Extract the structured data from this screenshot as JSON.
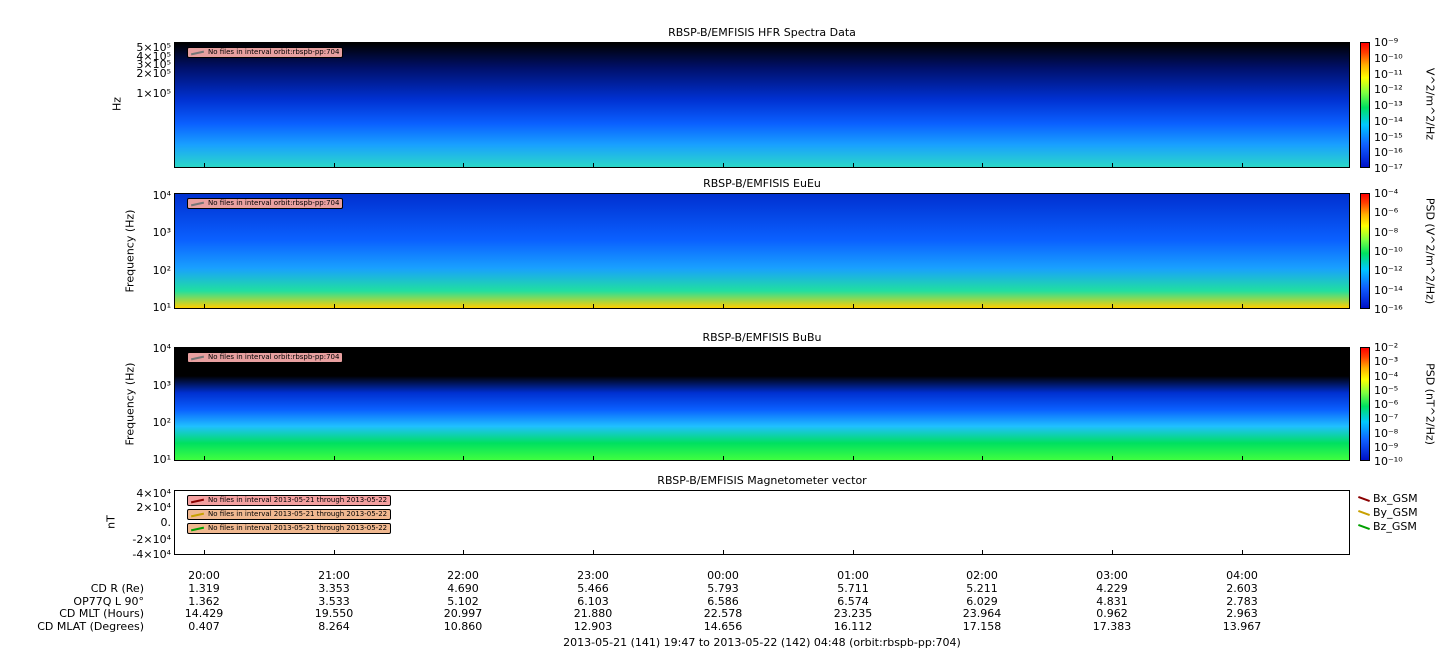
{
  "panels": [
    {
      "title": "RBSP-B/EMFISIS  HFR Spectra Data",
      "ylabel": "Hz",
      "yticks": [
        "5×10⁵",
        "4×10⁵",
        "3×10⁵",
        "2×10⁵",
        "1×10⁵"
      ],
      "cbar_label": "V^2/m^2/Hz",
      "cbar_ticks": [
        "10⁻⁹",
        "10⁻¹⁰",
        "10⁻¹¹",
        "10⁻¹²",
        "10⁻¹³",
        "10⁻¹⁴",
        "10⁻¹⁵",
        "10⁻¹⁶",
        "10⁻¹⁷"
      ],
      "warning": "No files in interval orbit:rbspb-pp:704"
    },
    {
      "title": "RBSP-B/EMFISIS  EuEu",
      "ylabel": "Frequency (Hz)",
      "yticks": [
        "10⁴",
        "10³",
        "10²",
        "10¹"
      ],
      "cbar_label": "PSD (V^2/m^2/Hz)",
      "cbar_ticks": [
        "10⁻⁴",
        "10⁻⁶",
        "10⁻⁸",
        "10⁻¹⁰",
        "10⁻¹²",
        "10⁻¹⁴",
        "10⁻¹⁶"
      ],
      "warning": "No files in interval orbit:rbspb-pp:704"
    },
    {
      "title": "RBSP-B/EMFISIS  BuBu",
      "ylabel": "Frequency (Hz)",
      "yticks": [
        "10⁴",
        "10³",
        "10²",
        "10¹"
      ],
      "cbar_label": "PSD (nT^2/Hz)",
      "cbar_ticks": [
        "10⁻²",
        "10⁻³",
        "10⁻⁴",
        "10⁻⁵",
        "10⁻⁶",
        "10⁻⁷",
        "10⁻⁸",
        "10⁻⁹",
        "10⁻¹⁰"
      ],
      "warning": "No files in interval orbit:rbspb-pp:704"
    },
    {
      "title": "RBSP-B/EMFISIS  Magnetometer vector",
      "ylabel": "nT",
      "yticks": [
        "4×10⁴",
        "2×10⁴",
        "0.",
        "-2×10⁴",
        "-4×10⁴"
      ],
      "warnings": [
        "No files in interval 2013-05-21 through 2013-05-22",
        "No files in interval 2013-05-21 through 2013-05-22",
        "No files in interval 2013-05-21 through 2013-05-22"
      ],
      "legend": [
        {
          "name": "Bx_GSM",
          "color": "#8b0000"
        },
        {
          "name": "By_GSM",
          "color": "#c8a000"
        },
        {
          "name": "Bz_GSM",
          "color": "#00a000"
        }
      ]
    }
  ],
  "xticks": [
    "20:00",
    "21:00",
    "22:00",
    "23:00",
    "00:00",
    "01:00",
    "02:00",
    "03:00",
    "04:00"
  ],
  "ephemeris": [
    {
      "label": "CD R (Re)",
      "values": [
        "1.319",
        "3.353",
        "4.690",
        "5.466",
        "5.793",
        "5.711",
        "5.211",
        "4.229",
        "2.603"
      ]
    },
    {
      "label": "OP77Q L 90°",
      "values": [
        "1.362",
        "3.533",
        "5.102",
        "6.103",
        "6.586",
        "6.574",
        "6.029",
        "4.831",
        "2.783"
      ]
    },
    {
      "label": "CD MLT (Hours)",
      "values": [
        "14.429",
        "19.550",
        "20.997",
        "21.880",
        "22.578",
        "23.235",
        "23.964",
        "0.962",
        "2.963"
      ]
    },
    {
      "label": "CD MLAT (Degrees)",
      "values": [
        "0.407",
        "8.264",
        "10.860",
        "12.903",
        "14.656",
        "16.112",
        "17.158",
        "17.383",
        "13.967"
      ]
    }
  ],
  "footer": "2013-05-21 (141) 19:47 to 2013-05-22 (142) 04:48 (orbit:rbspb-pp:704)",
  "chart_data": [
    {
      "type": "heatmap",
      "title": "RBSP-B/EMFISIS  HFR Spectra Data",
      "ylabel": "Hz",
      "zlabel": "V^2/m^2/Hz",
      "zlim": [
        "1e-17",
        "1e-9"
      ],
      "ylog": true
    },
    {
      "type": "heatmap",
      "title": "RBSP-B/EMFISIS  EuEu",
      "ylabel": "Frequency (Hz)",
      "ylim": [
        10,
        10000
      ],
      "zlabel": "PSD (V^2/m^2/Hz)",
      "zlim": [
        "1e-16",
        "1e-4"
      ],
      "ylog": true
    },
    {
      "type": "heatmap",
      "title": "RBSP-B/EMFISIS  BuBu",
      "ylabel": "Frequency (Hz)",
      "ylim": [
        10,
        10000
      ],
      "zlabel": "PSD (nT^2/Hz)",
      "zlim": [
        "1e-10",
        "1e-2"
      ],
      "ylog": true
    },
    {
      "type": "line",
      "title": "RBSP-B/EMFISIS  Magnetometer vector",
      "ylabel": "nT",
      "ylim": [
        -40000,
        40000
      ],
      "series": [
        {
          "name": "Bx_GSM",
          "values": []
        },
        {
          "name": "By_GSM",
          "values": []
        },
        {
          "name": "Bz_GSM",
          "values": []
        }
      ]
    }
  ]
}
